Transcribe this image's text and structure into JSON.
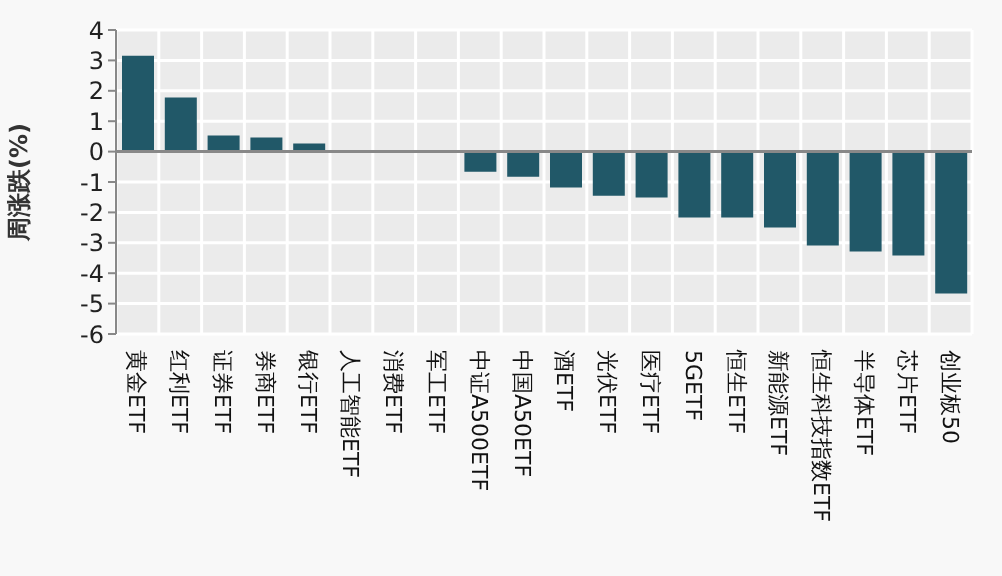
{
  "chart_data": {
    "type": "bar",
    "ylabel": "周涨跌(%)",
    "categories": [
      "黄金ETF",
      "红利ETF",
      "证券ETF",
      "券商ETF",
      "银行ETF",
      "人工智能ETF",
      "消费ETF",
      "军工ETF",
      "中证A500ETF",
      "中国A50ETF",
      "酒ETF",
      "光伏ETF",
      "医疗ETF",
      "5GETF",
      "恒生ETF",
      "新能源ETF",
      "恒生科技指数ETF",
      "半导体ETF",
      "芯片ETF",
      "创业板50"
    ],
    "values": [
      3.15,
      1.78,
      0.53,
      0.46,
      0.27,
      0,
      0,
      0,
      -0.66,
      -0.83,
      -1.18,
      -1.45,
      -1.51,
      -2.17,
      -2.17,
      -2.5,
      -3.09,
      -3.29,
      -3.42,
      -4.67
    ],
    "color": "#215868",
    "ylim": [
      -6,
      4
    ],
    "yticks": [
      -6,
      -5,
      -4,
      -3,
      -2,
      -1,
      0,
      1,
      2,
      3,
      4
    ],
    "grid": true,
    "legend": false
  }
}
